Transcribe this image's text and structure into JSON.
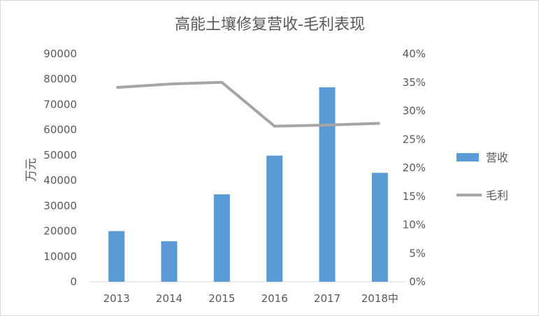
{
  "chart_data": {
    "type": "bar",
    "title": "高能土壤修复营收-毛利表现",
    "categories": [
      "2013",
      "2014",
      "2015",
      "2016",
      "2017",
      "2018中"
    ],
    "ylabel": "万元",
    "ylim": [
      0,
      90000
    ],
    "y_ticks": [
      "0",
      "10000",
      "20000",
      "30000",
      "40000",
      "50000",
      "60000",
      "70000",
      "80000",
      "90000"
    ],
    "y2lim": [
      0,
      0.4
    ],
    "y2_ticks": [
      "0%",
      "5%",
      "10%",
      "15%",
      "20%",
      "25%",
      "30%",
      "35%",
      "40%"
    ],
    "grid": false,
    "legend_position": "right",
    "series": [
      {
        "name": "营收",
        "type": "bar",
        "axis": "left",
        "color": "#5b9bd5",
        "values": [
          20000,
          16000,
          34500,
          49800,
          76800,
          43000
        ]
      },
      {
        "name": "毛利",
        "type": "line",
        "axis": "right",
        "color": "#a5a5a5",
        "values": [
          0.341,
          0.347,
          0.35,
          0.273,
          0.275,
          0.278
        ]
      }
    ]
  }
}
